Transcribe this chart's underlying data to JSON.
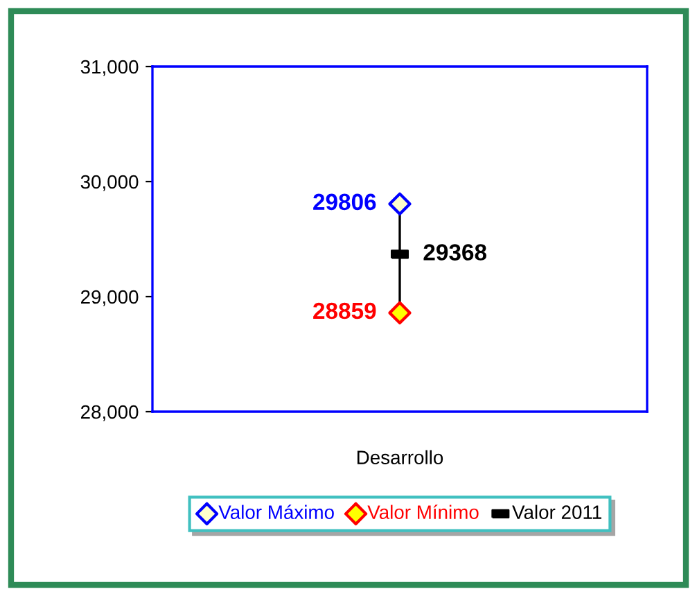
{
  "chart_data": {
    "type": "scatter",
    "categories": [
      "Desarrollo"
    ],
    "series": [
      {
        "type": "line",
        "x": [
          "Desarrollo",
          "Desarrollo"
        ],
        "values": [
          28859,
          29806
        ],
        "color": "#000000"
      },
      {
        "name": "Valor Máximo",
        "color": "#0000ff",
        "values": [
          29806
        ],
        "value_labels": [
          "29806"
        ],
        "marker": "diamond"
      },
      {
        "name": "Valor Mínimo",
        "color": "#ff0000",
        "values": [
          28859
        ],
        "value_labels": [
          "28859"
        ],
        "marker": "diamond"
      },
      {
        "name": "Valor 2011",
        "color": "#000000",
        "values": [
          29368
        ],
        "value_labels": [
          "29368"
        ],
        "marker": "square"
      }
    ],
    "ylim": [
      28000,
      31000
    ],
    "yticks": [
      {
        "value": 28000,
        "label": "28,000"
      },
      {
        "value": 29000,
        "label": "29,000"
      },
      {
        "value": 30000,
        "label": "30,000"
      },
      {
        "value": 31000,
        "label": "31,000"
      }
    ],
    "legend": "bottom"
  }
}
